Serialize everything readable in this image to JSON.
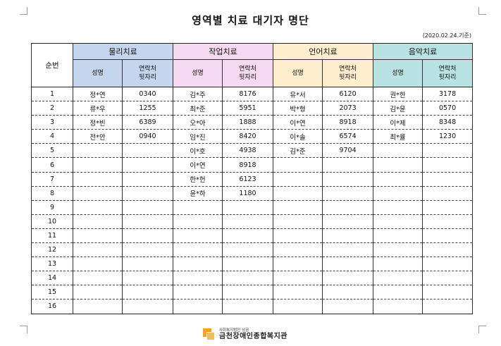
{
  "title": "영역별 치료 대기자 명단",
  "date_note": "(2020.02.24.기준)",
  "table": {
    "seq_header": "순번",
    "groups": [
      {
        "name": "물리치료",
        "color": "#c6d5ee"
      },
      {
        "name": "작업치료",
        "color": "#f5d9f0"
      },
      {
        "name": "언어치료",
        "color": "#fdeecd"
      },
      {
        "name": "음악치료",
        "color": "#b9e3e3"
      }
    ],
    "sub_name": "성명",
    "sub_contact": "연락처 뒷자리",
    "rows": [
      {
        "seq": "1",
        "pt_name": "정*연",
        "pt_num": "0340",
        "ot_name": "김*주",
        "ot_num": "8176",
        "lt_name": "유*서",
        "lt_num": "6120",
        "mt_name": "권*한",
        "mt_num": "3178"
      },
      {
        "seq": "2",
        "pt_name": "류*우",
        "pt_num": "1255",
        "ot_name": "최*준",
        "ot_num": "5951",
        "lt_name": "박*형",
        "lt_num": "2073",
        "mt_name": "김*윤",
        "mt_num": "0570"
      },
      {
        "seq": "3",
        "pt_name": "정*빈",
        "pt_num": "6389",
        "ot_name": "오*아",
        "ot_num": "1888",
        "lt_name": "이*연",
        "lt_num": "8918",
        "mt_name": "이*제",
        "mt_num": "8348"
      },
      {
        "seq": "4",
        "pt_name": "전*안",
        "pt_num": "0940",
        "ot_name": "임*진",
        "ot_num": "8420",
        "lt_name": "이*솔",
        "lt_num": "6574",
        "mt_name": "최*율",
        "mt_num": "1230"
      },
      {
        "seq": "5",
        "pt_name": "",
        "pt_num": "",
        "ot_name": "이*호",
        "ot_num": "4938",
        "lt_name": "김*준",
        "lt_num": "9704",
        "mt_name": "",
        "mt_num": ""
      },
      {
        "seq": "6",
        "pt_name": "",
        "pt_num": "",
        "ot_name": "이*연",
        "ot_num": "8918",
        "lt_name": "",
        "lt_num": "",
        "mt_name": "",
        "mt_num": ""
      },
      {
        "seq": "7",
        "pt_name": "",
        "pt_num": "",
        "ot_name": "한*헌",
        "ot_num": "6123",
        "lt_name": "",
        "lt_num": "",
        "mt_name": "",
        "mt_num": ""
      },
      {
        "seq": "8",
        "pt_name": "",
        "pt_num": "",
        "ot_name": "윤*하",
        "ot_num": "1180",
        "lt_name": "",
        "lt_num": "",
        "mt_name": "",
        "mt_num": ""
      },
      {
        "seq": "9",
        "pt_name": "",
        "pt_num": "",
        "ot_name": "",
        "ot_num": "",
        "lt_name": "",
        "lt_num": "",
        "mt_name": "",
        "mt_num": ""
      },
      {
        "seq": "10",
        "pt_name": "",
        "pt_num": "",
        "ot_name": "",
        "ot_num": "",
        "lt_name": "",
        "lt_num": "",
        "mt_name": "",
        "mt_num": ""
      },
      {
        "seq": "11",
        "pt_name": "",
        "pt_num": "",
        "ot_name": "",
        "ot_num": "",
        "lt_name": "",
        "lt_num": "",
        "mt_name": "",
        "mt_num": ""
      },
      {
        "seq": "12",
        "pt_name": "",
        "pt_num": "",
        "ot_name": "",
        "ot_num": "",
        "lt_name": "",
        "lt_num": "",
        "mt_name": "",
        "mt_num": ""
      },
      {
        "seq": "13",
        "pt_name": "",
        "pt_num": "",
        "ot_name": "",
        "ot_num": "",
        "lt_name": "",
        "lt_num": "",
        "mt_name": "",
        "mt_num": ""
      },
      {
        "seq": "14",
        "pt_name": "",
        "pt_num": "",
        "ot_name": "",
        "ot_num": "",
        "lt_name": "",
        "lt_num": "",
        "mt_name": "",
        "mt_num": ""
      },
      {
        "seq": "15",
        "pt_name": "",
        "pt_num": "",
        "ot_name": "",
        "ot_num": "",
        "lt_name": "",
        "lt_num": "",
        "mt_name": "",
        "mt_num": ""
      },
      {
        "seq": "16",
        "pt_name": "",
        "pt_num": "",
        "ot_name": "",
        "ot_num": "",
        "lt_name": "",
        "lt_num": "",
        "mt_name": "",
        "mt_num": ""
      }
    ]
  },
  "footer": {
    "org_sub": "사회복지법인 상금",
    "org_name": "금천장애인종합복지관",
    "logo_icon": "org-logo-icon"
  }
}
